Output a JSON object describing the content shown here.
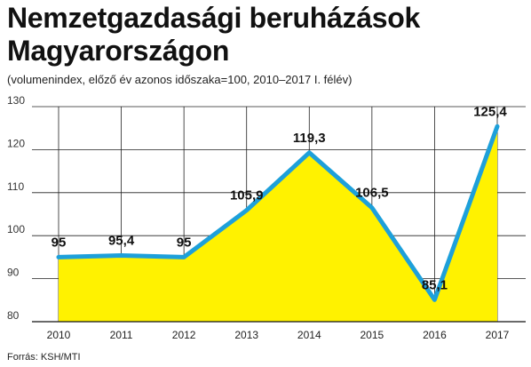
{
  "header": {
    "title_line1": "Nemzetgazdasági beruházások",
    "title_line2": "Magyarországon",
    "subtitle": "(volumenindex, előző év azonos időszaka=100, 2010–2017 I. félév)"
  },
  "footer": {
    "source": "Forrás: KSH/MTI"
  },
  "colors": {
    "area_fill": "#FFF200",
    "line": "#1EA0DA",
    "grid": "#222222"
  },
  "chart_data": {
    "type": "area",
    "title": "Nemzetgazdasági beruházások Magyarországon",
    "subtitle": "(volumenindex, előző év azonos időszaka=100, 2010–2017 I. félév)",
    "x": [
      "2010",
      "2011",
      "2012",
      "2013",
      "2014",
      "2015",
      "2016",
      "2017"
    ],
    "values": [
      95,
      95.4,
      95,
      105.9,
      119.3,
      106.5,
      85.1,
      125.4
    ],
    "data_labels": [
      "95",
      "95,4",
      "95",
      "105,9",
      "119,3",
      "106,5",
      "85,1",
      "125,4"
    ],
    "y_ticks": [
      "80",
      "90",
      "100",
      "110",
      "120",
      "130"
    ],
    "ylim": [
      80,
      130
    ],
    "xlabel": "",
    "ylabel": "",
    "grid": true,
    "legend": "none"
  }
}
